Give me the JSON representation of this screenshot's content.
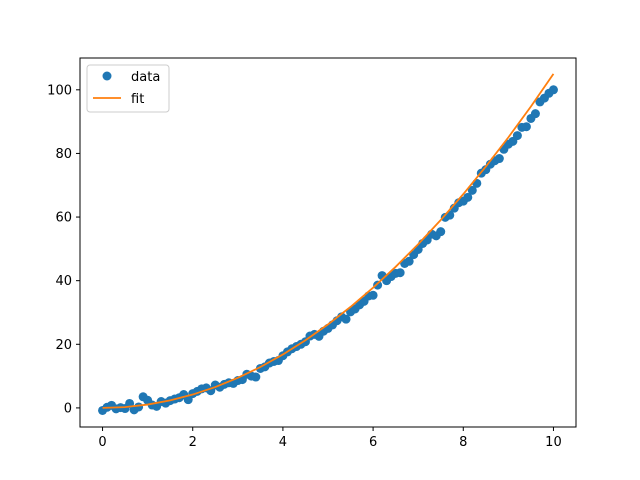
{
  "chart_data": {
    "type": "scatter",
    "title": "",
    "xlabel": "",
    "ylabel": "",
    "xlim": [
      -0.5,
      10.5
    ],
    "ylim": [
      -6,
      110
    ],
    "xticks": [
      0,
      2,
      4,
      6,
      8,
      10
    ],
    "yticks": [
      0,
      20,
      40,
      60,
      80,
      100
    ],
    "grid": false,
    "legend_position": "top-left",
    "series": [
      {
        "name": "data",
        "kind": "markers",
        "color": "#1f77b4",
        "x": [
          0.0,
          0.1,
          0.2,
          0.3,
          0.4,
          0.5,
          0.6,
          0.7,
          0.8,
          0.9,
          1.0,
          1.1,
          1.2,
          1.3,
          1.4,
          1.5,
          1.6,
          1.7,
          1.8,
          1.9,
          2.0,
          2.1,
          2.2,
          2.3,
          2.4,
          2.5,
          2.6,
          2.7,
          2.8,
          2.9,
          3.0,
          3.1,
          3.2,
          3.3,
          3.4,
          3.5,
          3.6,
          3.7,
          3.8,
          3.9,
          4.0,
          4.1,
          4.2,
          4.3,
          4.4,
          4.5,
          4.6,
          4.7,
          4.8,
          4.9,
          5.0,
          5.1,
          5.2,
          5.3,
          5.4,
          5.5,
          5.6,
          5.7,
          5.8,
          5.9,
          6.0,
          6.1,
          6.2,
          6.3,
          6.4,
          6.5,
          6.6,
          6.7,
          6.8,
          6.9,
          7.0,
          7.1,
          7.2,
          7.3,
          7.4,
          7.5,
          7.6,
          7.7,
          7.8,
          7.9,
          8.0,
          8.1,
          8.2,
          8.3,
          8.4,
          8.5,
          8.6,
          8.7,
          8.8,
          8.9,
          9.0,
          9.1,
          9.2,
          9.3,
          9.4,
          9.5,
          9.6,
          9.7,
          9.8,
          9.9,
          10.0
        ],
        "y": [
          -0.8,
          0.2,
          0.8,
          -0.3,
          0.1,
          -0.2,
          1.4,
          -0.6,
          0.3,
          3.5,
          2.4,
          0.9,
          0.5,
          2.0,
          1.5,
          2.3,
          2.8,
          3.2,
          4.2,
          2.6,
          4.5,
          5.2,
          6.0,
          6.3,
          5.4,
          7.2,
          6.5,
          7.4,
          7.9,
          7.7,
          8.6,
          8.9,
          10.6,
          10.0,
          9.7,
          12.4,
          12.9,
          14.1,
          14.6,
          14.9,
          16.4,
          17.6,
          18.6,
          19.3,
          20.0,
          20.8,
          22.6,
          23.1,
          22.5,
          24.1,
          25.0,
          26.1,
          27.4,
          28.6,
          27.9,
          30.2,
          31.1,
          32.4,
          33.5,
          35.2,
          35.4,
          38.6,
          41.6,
          40.0,
          41.3,
          42.3,
          42.5,
          45.4,
          46.1,
          48.2,
          49.8,
          51.7,
          52.8,
          54.6,
          54.1,
          55.4,
          59.9,
          60.6,
          62.8,
          64.5,
          65.0,
          66.2,
          68.4,
          70.6,
          73.8,
          74.9,
          76.6,
          77.7,
          78.4,
          81.3,
          82.9,
          83.8,
          85.6,
          88.2,
          88.4,
          91.0,
          92.5,
          96.2,
          97.4,
          98.9,
          100.0
        ]
      },
      {
        "name": "fit",
        "kind": "line",
        "color": "#ff7f0e",
        "x": [
          0,
          0.5,
          1,
          1.5,
          2,
          2.5,
          3,
          3.5,
          4,
          4.5,
          5,
          5.5,
          6,
          6.5,
          7,
          7.5,
          8,
          8.5,
          9,
          9.5,
          10
        ],
        "y": [
          0.0,
          0.26,
          1.05,
          2.36,
          4.2,
          6.56,
          9.45,
          12.86,
          16.8,
          21.26,
          26.25,
          31.76,
          37.8,
          44.36,
          51.45,
          59.06,
          67.2,
          75.86,
          85.05,
          94.76,
          105.0
        ]
      }
    ]
  }
}
